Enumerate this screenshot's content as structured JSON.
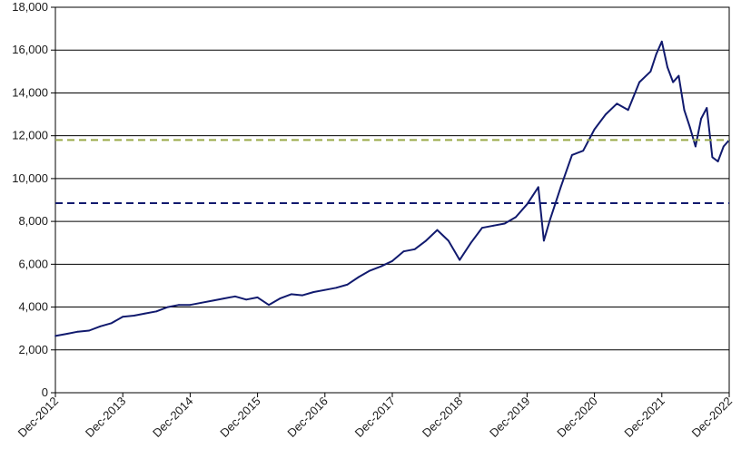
{
  "chart_data": {
    "type": "line",
    "title": "",
    "xlabel": "",
    "ylabel": "",
    "ylim": [
      0,
      18000
    ],
    "y_ticks": [
      0,
      2000,
      4000,
      6000,
      8000,
      10000,
      12000,
      14000,
      16000,
      18000
    ],
    "y_tick_labels": [
      "0",
      "2,000",
      "4,000",
      "6,000",
      "8,000",
      "10,000",
      "12,000",
      "14,000",
      "16,000",
      "18,000"
    ],
    "x_range": [
      "2012-12",
      "2022-12"
    ],
    "x_tick_labels": [
      "Dec-2012",
      "Dec-2013",
      "Dec-2014",
      "Dec-2015",
      "Dec-2016",
      "Dec-2017",
      "Dec-2018",
      "Dec-2019",
      "Dec-2020",
      "Dec-2021",
      "Dec-2022"
    ],
    "grid": "horizontal",
    "legend": "none",
    "series": [
      {
        "color": "#111a6e",
        "style": "solid",
        "x": [
          "2012-12",
          "2013-02",
          "2013-04",
          "2013-06",
          "2013-08",
          "2013-10",
          "2013-12",
          "2014-02",
          "2014-04",
          "2014-06",
          "2014-08",
          "2014-10",
          "2014-12",
          "2015-02",
          "2015-04",
          "2015-06",
          "2015-08",
          "2015-10",
          "2015-12",
          "2016-02",
          "2016-04",
          "2016-06",
          "2016-08",
          "2016-10",
          "2016-12",
          "2017-02",
          "2017-04",
          "2017-06",
          "2017-08",
          "2017-10",
          "2017-12",
          "2018-02",
          "2018-04",
          "2018-06",
          "2018-08",
          "2018-10",
          "2018-12",
          "2019-02",
          "2019-04",
          "2019-06",
          "2019-08",
          "2019-10",
          "2019-12",
          "2020-01",
          "2020-02",
          "2020-03",
          "2020-04",
          "2020-06",
          "2020-08",
          "2020-10",
          "2020-12",
          "2021-02",
          "2021-04",
          "2021-06",
          "2021-08",
          "2021-10",
          "2021-11",
          "2021-12",
          "2022-01",
          "2022-02",
          "2022-03",
          "2022-04",
          "2022-05",
          "2022-06",
          "2022-07",
          "2022-08",
          "2022-09",
          "2022-10",
          "2022-11",
          "2022-12"
        ],
        "values": [
          2650,
          2750,
          2850,
          2900,
          3100,
          3250,
          3550,
          3600,
          3700,
          3800,
          4000,
          4100,
          4100,
          4200,
          4300,
          4400,
          4500,
          4350,
          4450,
          4100,
          4400,
          4600,
          4550,
          4700,
          4800,
          4900,
          5050,
          5400,
          5700,
          5900,
          6150,
          6600,
          6700,
          7100,
          7600,
          7100,
          6200,
          7000,
          7700,
          7800,
          7900,
          8200,
          8800,
          9200,
          9600,
          7100,
          8000,
          9600,
          11100,
          11300,
          12300,
          13000,
          13500,
          13200,
          14500,
          15000,
          15800,
          16400,
          15200,
          14500,
          14800,
          13200,
          12400,
          11500,
          12800,
          13300,
          11000,
          10800,
          11500,
          11800
        ]
      },
      {
        "name": "",
        "color": "#9aab4a",
        "style": "dashed",
        "constant": 11800
      },
      {
        "name": "",
        "color": "#111a6e",
        "style": "dashed",
        "constant": 8850
      }
    ]
  }
}
